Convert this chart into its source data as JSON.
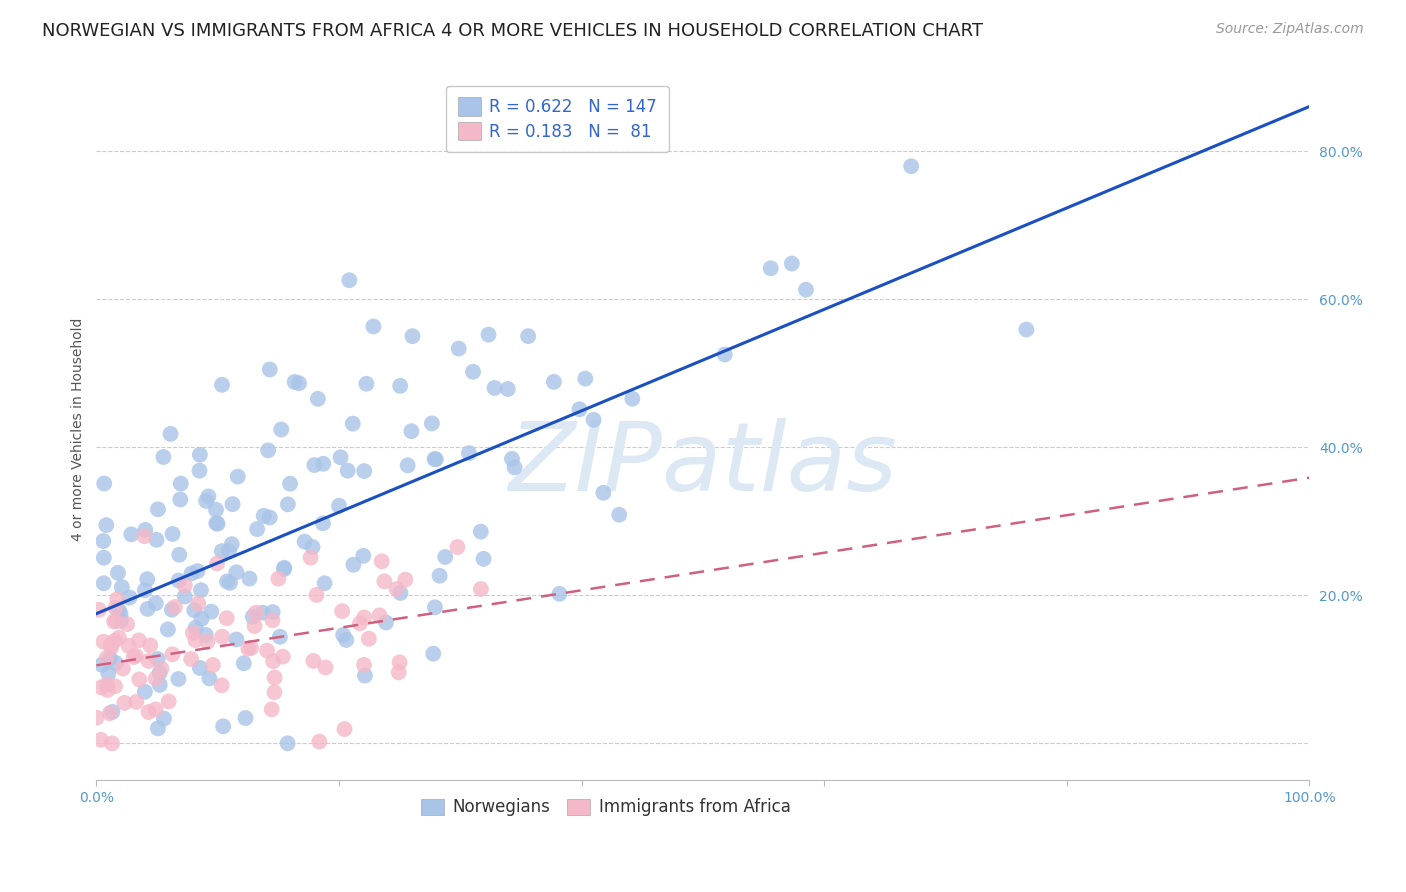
{
  "title": "NORWEGIAN VS IMMIGRANTS FROM AFRICA 4 OR MORE VEHICLES IN HOUSEHOLD CORRELATION CHART",
  "source": "Source: ZipAtlas.com",
  "ylabel": "4 or more Vehicles in Household",
  "xmin": 0.0,
  "xmax": 1.0,
  "ymin": -0.05,
  "ymax": 0.9,
  "norwegian_R": 0.622,
  "norwegian_N": 147,
  "african_R": 0.183,
  "african_N": 81,
  "norwegian_color": "#a8c4e8",
  "african_color": "#f4b8c8",
  "trendline_norwegian": "#1a50c0",
  "trendline_african": "#d06080",
  "background_color": "#ffffff",
  "watermark_text": "ZIPatlas",
  "watermark_color": "#dce8f4",
  "tick_color": "#5599cc",
  "title_fontsize": 13,
  "source_fontsize": 10,
  "axis_label_fontsize": 10,
  "tick_fontsize": 10,
  "legend_fontsize": 12,
  "seed_norwegian": 7,
  "seed_african": 13
}
